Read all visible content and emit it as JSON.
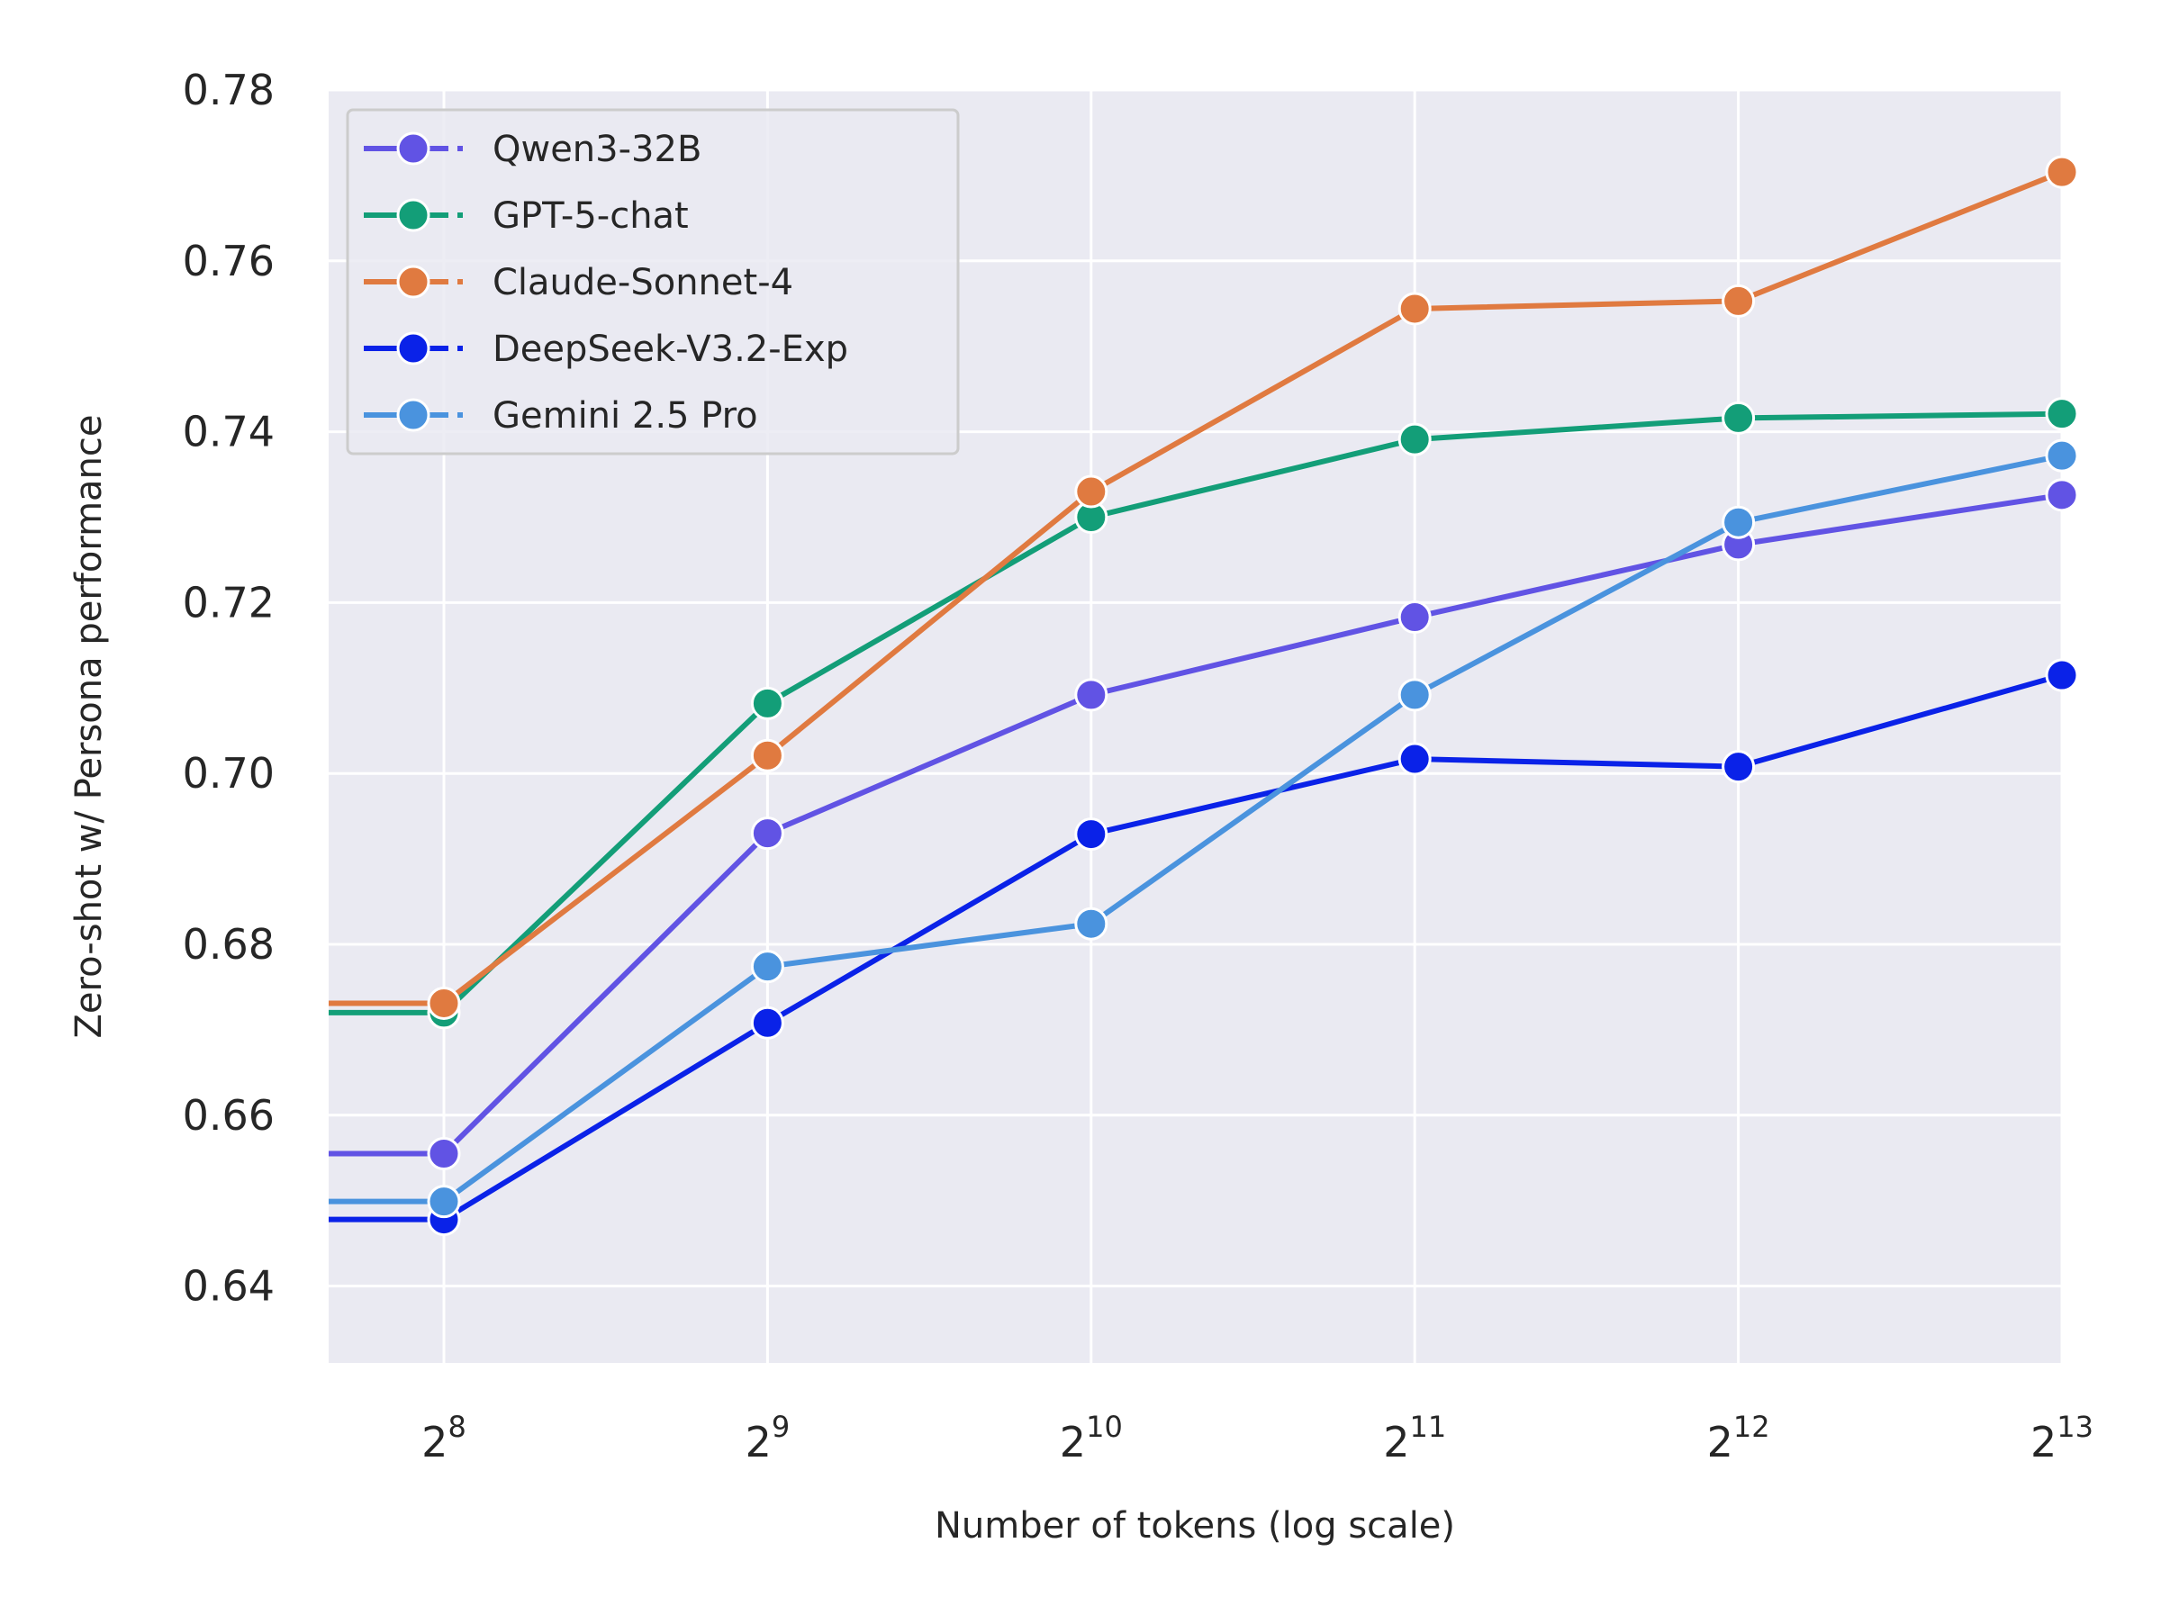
{
  "chart_data": {
    "type": "line",
    "title": "",
    "xlabel": "Number of tokens (log scale)",
    "ylabel": "Zero-shot w/ Persona performance",
    "x_scale": "log2",
    "x": [
      256,
      512,
      1024,
      2048,
      4096,
      8192
    ],
    "x_tick_labels": [
      {
        "base": "2",
        "exp": "8"
      },
      {
        "base": "2",
        "exp": "9"
      },
      {
        "base": "2",
        "exp": "10"
      },
      {
        "base": "2",
        "exp": "11"
      },
      {
        "base": "2",
        "exp": "12"
      },
      {
        "base": "2",
        "exp": "13"
      }
    ],
    "xlim": [
      200,
      8192
    ],
    "ylim": [
      0.631,
      0.78
    ],
    "y_ticks": [
      "0.64",
      "0.66",
      "0.68",
      "0.70",
      "0.72",
      "0.74",
      "0.76",
      "0.78"
    ],
    "grid": true,
    "background": "#eaeaf2",
    "legend_position": "top-left",
    "series": [
      {
        "name": "Qwen3-32B",
        "color": "#6153e4",
        "values": [
          0.6555,
          0.693,
          0.7092,
          0.7183,
          0.7268,
          0.7326
        ]
      },
      {
        "name": "GPT-5-chat",
        "color": "#139e78",
        "values": [
          0.672,
          0.7082,
          0.73,
          0.7391,
          0.7416,
          0.7421
        ]
      },
      {
        "name": "Claude-Sonnet-4",
        "color": "#e07a40",
        "values": [
          0.6731,
          0.7021,
          0.733,
          0.7544,
          0.7553,
          0.7704
        ]
      },
      {
        "name": "DeepSeek-V3.2-Exp",
        "color": "#0a22e8",
        "values": [
          0.6478,
          0.6708,
          0.6929,
          0.7017,
          0.7008,
          0.7115
        ]
      },
      {
        "name": "Gemini 2.5 Pro",
        "color": "#4a93de",
        "values": [
          0.6499,
          0.6774,
          0.6824,
          0.7092,
          0.7294,
          0.7372
        ]
      }
    ]
  }
}
